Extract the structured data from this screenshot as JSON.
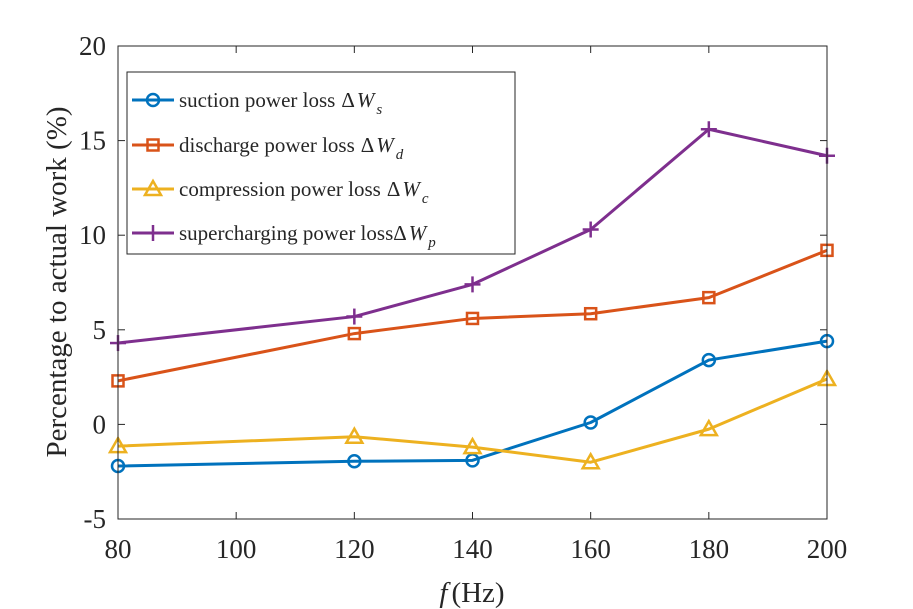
{
  "chart_data": {
    "type": "line",
    "title": "",
    "xlabel_var": "f",
    "xlabel_unit": "(Hz)",
    "ylabel": "Percentage to actual work (%)",
    "xlim": [
      80,
      200
    ],
    "ylim": [
      -5,
      20
    ],
    "xticks": [
      "80",
      "100",
      "120",
      "140",
      "160",
      "180",
      "200"
    ],
    "xtick_values": [
      80,
      100,
      120,
      140,
      160,
      180,
      200
    ],
    "yticks": [
      "-5",
      "0",
      "5",
      "10",
      "15",
      "20"
    ],
    "ytick_values": [
      -5,
      0,
      5,
      10,
      15,
      20
    ],
    "x": [
      80,
      120,
      140,
      160,
      180,
      200
    ],
    "legend_position": "top-left",
    "grid": false,
    "series": [
      {
        "name": "suction power loss",
        "symbol": "ΔW",
        "subscript": "s",
        "marker": "circle",
        "color": "#0072BD",
        "values": [
          -2.2,
          -1.95,
          -1.9,
          0.1,
          3.4,
          4.4
        ]
      },
      {
        "name": "discharge power loss",
        "symbol": "ΔW",
        "subscript": "d",
        "marker": "square",
        "color": "#D95319",
        "values": [
          2.3,
          4.8,
          5.6,
          5.85,
          6.7,
          9.2
        ]
      },
      {
        "name": "compression power loss",
        "symbol": "ΔW",
        "subscript": "c",
        "marker": "triangle",
        "color": "#EDB120",
        "values": [
          -1.15,
          -0.65,
          -1.2,
          -2.0,
          -0.25,
          2.4
        ]
      },
      {
        "name": "supercharging power loss",
        "symbol": "ΔW",
        "subscript": "p",
        "marker": "plus",
        "color": "#7E2F8E",
        "values": [
          4.3,
          5.7,
          7.4,
          10.3,
          15.6,
          14.2
        ]
      }
    ]
  }
}
